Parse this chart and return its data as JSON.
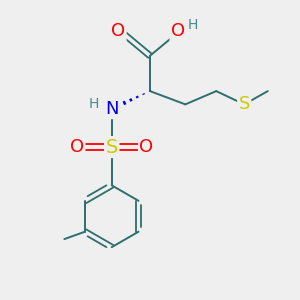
{
  "bg_color": "#efefef",
  "atom_colors": {
    "O": "#ff0000",
    "N": "#0000ee",
    "S_sulfonyl": "#cccc00",
    "S_methyl": "#cccc00",
    "C": "#2d6e6e",
    "H": "#4a8a8a"
  },
  "bond_color": "#2d6e6e",
  "font_size_atoms": 13,
  "font_size_H": 10
}
